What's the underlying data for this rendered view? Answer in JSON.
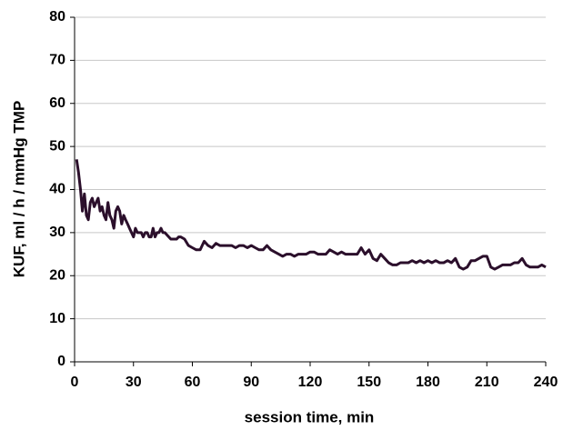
{
  "chart_data": {
    "type": "line",
    "y_label": "KUF, ml / h / mmHg TMP",
    "x_label": "session  time,  min",
    "x": [
      1,
      2,
      3,
      4,
      5,
      6,
      7,
      8,
      9,
      10,
      11,
      12,
      13,
      14,
      15,
      16,
      17,
      18,
      19,
      20,
      21,
      22,
      23,
      24,
      25,
      26,
      27,
      28,
      29,
      30,
      31,
      32,
      33,
      34,
      35,
      36,
      37,
      38,
      39,
      40,
      41,
      42,
      43,
      44,
      45,
      46,
      47,
      48,
      49,
      50,
      52,
      53,
      54,
      56,
      58,
      60,
      62,
      64,
      66,
      68,
      70,
      72,
      74,
      76,
      78,
      80,
      82,
      84,
      86,
      88,
      90,
      92,
      94,
      96,
      98,
      100,
      102,
      104,
      106,
      108,
      110,
      112,
      114,
      116,
      118,
      120,
      122,
      124,
      126,
      128,
      130,
      132,
      134,
      136,
      138,
      140,
      142,
      144,
      146,
      148,
      150,
      152,
      154,
      156,
      158,
      160,
      162,
      164,
      166,
      168,
      170,
      172,
      174,
      176,
      178,
      180,
      182,
      184,
      186,
      188,
      190,
      192,
      194,
      196,
      198,
      200,
      202,
      204,
      206,
      208,
      210,
      212,
      214,
      216,
      218,
      220,
      222,
      224,
      226,
      228,
      230,
      232,
      234,
      236,
      238,
      240
    ],
    "values": [
      47,
      44,
      40,
      35,
      39,
      34,
      33,
      37,
      38,
      36,
      37,
      38,
      35,
      36,
      34,
      33,
      37,
      34,
      33,
      31,
      35,
      36,
      35,
      32,
      34,
      33,
      32,
      31,
      30,
      29,
      31,
      30,
      30,
      30,
      29,
      30,
      30,
      29,
      29,
      31,
      29,
      30,
      30,
      31,
      30,
      30,
      29.5,
      29,
      28.5,
      28.5,
      28.5,
      29,
      29,
      28.5,
      27,
      26.5,
      26,
      26,
      28,
      27,
      26.5,
      27.5,
      27,
      27,
      27,
      27,
      26.5,
      27,
      27,
      26.5,
      27,
      26.5,
      26,
      26,
      27,
      26,
      25.5,
      25,
      24.5,
      25,
      25,
      24.5,
      25,
      25,
      25,
      25.5,
      25.5,
      25,
      25,
      25,
      26,
      25.5,
      25,
      25.5,
      25,
      25,
      25,
      25,
      26.5,
      25,
      26,
      24,
      23.5,
      25,
      24,
      23,
      22.5,
      22.5,
      23,
      23,
      23,
      23.5,
      23,
      23.5,
      23,
      23.5,
      23,
      23.5,
      23,
      23,
      23.5,
      23,
      24,
      22,
      21.5,
      22,
      23.5,
      23.5,
      24,
      24.5,
      24.5,
      22,
      21.5,
      22,
      22.5,
      22.5,
      22.5,
      23,
      23,
      24,
      22.5,
      22,
      22,
      22,
      22.5,
      22
    ],
    "color": "#2b0f2b",
    "xlim": [
      0,
      240
    ],
    "xticks": [
      0,
      30,
      60,
      90,
      120,
      150,
      180,
      210,
      240
    ],
    "ylim": [
      0,
      80
    ],
    "yticks": [
      0,
      10,
      20,
      30,
      40,
      50,
      60,
      70,
      80
    ],
    "grid": true
  }
}
